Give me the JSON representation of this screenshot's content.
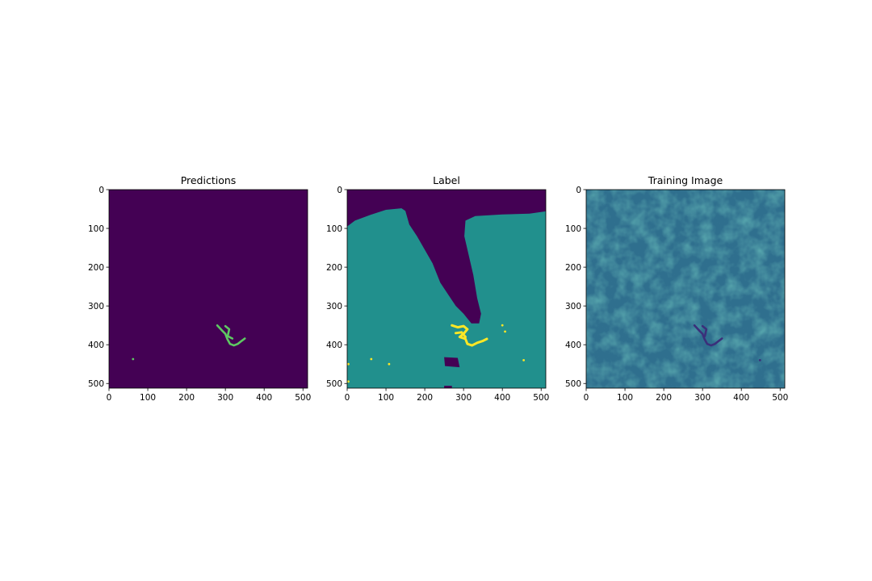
{
  "colors": {
    "viridis_low": "#440154",
    "viridis_mid": "#21908d",
    "viridis_high": "#fde725",
    "viridis_green": "#5ec962",
    "viridis_blue": "#3b528b"
  },
  "chart_data": [
    {
      "type": "heatmap",
      "title": "Predictions",
      "colormap": "viridis",
      "xlim": [
        0,
        512
      ],
      "ylim": [
        512,
        0
      ],
      "x_ticks": [
        0,
        100,
        200,
        300,
        400,
        500
      ],
      "y_ticks": [
        0,
        100,
        200,
        300,
        400,
        500
      ],
      "x_tick_labels": [
        "0",
        "100",
        "200",
        "300",
        "400",
        "500"
      ],
      "y_tick_labels": [
        "0",
        "100",
        "200",
        "300",
        "400",
        "500"
      ],
      "background_value": "low",
      "features": [
        {
          "label": "predicted river segment",
          "value": "high",
          "points": [
            [
              279,
              350
            ],
            [
              292,
              364
            ],
            [
              300,
              372
            ],
            [
              305,
              385
            ],
            [
              312,
              398
            ],
            [
              322,
              402
            ],
            [
              332,
              398
            ],
            [
              342,
              390
            ],
            [
              350,
              384
            ]
          ]
        },
        {
          "label": "predicted branch",
          "value": "high",
          "points": [
            [
              300,
              352
            ],
            [
              310,
              360
            ],
            [
              306,
              378
            ],
            [
              318,
              384
            ]
          ]
        },
        {
          "label": "small spot",
          "value": "high",
          "points": [
            [
              62,
              437
            ]
          ]
        }
      ]
    },
    {
      "type": "heatmap",
      "title": "Label",
      "colormap": "viridis",
      "xlim": [
        0,
        512
      ],
      "ylim": [
        512,
        0
      ],
      "x_ticks": [
        0,
        100,
        200,
        300,
        400,
        500
      ],
      "y_ticks": [
        0,
        100,
        200,
        300,
        400,
        500
      ],
      "x_tick_labels": [
        "0",
        "100",
        "200",
        "300",
        "400",
        "500"
      ],
      "y_tick_labels": [
        "0",
        "100",
        "200",
        "300",
        "400",
        "500"
      ],
      "classes": [
        "low",
        "mid",
        "high"
      ],
      "regions": [
        {
          "label": "mid-class area",
          "value": "mid",
          "polygon": [
            [
              0,
              95
            ],
            [
              20,
              80
            ],
            [
              60,
              65
            ],
            [
              100,
              52
            ],
            [
              140,
              48
            ],
            [
              150,
              55
            ],
            [
              160,
              90
            ],
            [
              180,
              120
            ],
            [
              200,
              155
            ],
            [
              220,
              190
            ],
            [
              240,
              240
            ],
            [
              260,
              270
            ],
            [
              280,
              300
            ],
            [
              300,
              320
            ],
            [
              320,
              345
            ],
            [
              340,
              345
            ],
            [
              345,
              320
            ],
            [
              335,
              280
            ],
            [
              325,
              220
            ],
            [
              302,
              120
            ],
            [
              305,
              80
            ],
            [
              330,
              68
            ],
            [
              400,
              64
            ],
            [
              470,
              62
            ],
            [
              512,
              56
            ],
            [
              512,
              512
            ],
            [
              0,
              512
            ]
          ]
        },
        {
          "label": "low-class block",
          "value": "low",
          "polygon": [
            [
              250,
              432
            ],
            [
              285,
              434
            ],
            [
              290,
              458
            ],
            [
              252,
              455
            ]
          ]
        },
        {
          "label": "low-class sliver",
          "value": "low",
          "polygon": [
            [
              250,
              506
            ],
            [
              270,
              506
            ],
            [
              270,
              512
            ],
            [
              250,
              512
            ]
          ]
        }
      ],
      "features": [
        {
          "label": "labelled river",
          "value": "high",
          "points": [
            [
              270,
              350
            ],
            [
              285,
              355
            ],
            [
              300,
              352
            ],
            [
              310,
              360
            ],
            [
              300,
              372
            ],
            [
              290,
              380
            ],
            [
              305,
              385
            ],
            [
              310,
              398
            ],
            [
              322,
              402
            ],
            [
              335,
              395
            ],
            [
              350,
              390
            ],
            [
              360,
              385
            ]
          ]
        },
        {
          "label": "labelled branch",
          "value": "high",
          "points": [
            [
              280,
              370
            ],
            [
              295,
              368
            ],
            [
              305,
              380
            ]
          ]
        },
        {
          "label": "spot",
          "value": "high",
          "points": [
            [
              400,
              350
            ]
          ]
        },
        {
          "label": "spot",
          "value": "high",
          "points": [
            [
              407,
              366
            ]
          ]
        },
        {
          "label": "spot",
          "value": "high",
          "points": [
            [
              455,
              440
            ]
          ]
        },
        {
          "label": "spot",
          "value": "high",
          "points": [
            [
              62,
              437
            ]
          ]
        },
        {
          "label": "spot",
          "value": "high",
          "points": [
            [
              108,
              450
            ]
          ]
        },
        {
          "label": "spot",
          "value": "high",
          "points": [
            [
              3,
              450
            ]
          ]
        },
        {
          "label": "spot",
          "value": "high",
          "points": [
            [
              3,
              495
            ]
          ]
        }
      ]
    },
    {
      "type": "heatmap",
      "title": "Training Image",
      "colormap": "viridis",
      "xlim": [
        0,
        512
      ],
      "ylim": [
        512,
        0
      ],
      "x_ticks": [
        0,
        100,
        200,
        300,
        400,
        500
      ],
      "y_ticks": [
        0,
        100,
        200,
        300,
        400,
        500
      ],
      "x_tick_labels": [
        "0",
        "100",
        "200",
        "300",
        "400",
        "500"
      ],
      "y_tick_labels": [
        "0",
        "100",
        "200",
        "300",
        "400",
        "500"
      ],
      "background": "noisy texture",
      "features": [
        {
          "label": "dark river",
          "value": "low",
          "points": [
            [
              279,
              350
            ],
            [
              292,
              364
            ],
            [
              300,
              372
            ],
            [
              305,
              385
            ],
            [
              312,
              398
            ],
            [
              322,
              402
            ],
            [
              332,
              398
            ],
            [
              342,
              390
            ],
            [
              350,
              384
            ]
          ]
        },
        {
          "label": "dark branch",
          "value": "low",
          "points": [
            [
              300,
              352
            ],
            [
              310,
              360
            ],
            [
              306,
              378
            ]
          ]
        },
        {
          "label": "dark spot",
          "value": "low",
          "points": [
            [
              448,
              440
            ]
          ]
        }
      ]
    }
  ]
}
